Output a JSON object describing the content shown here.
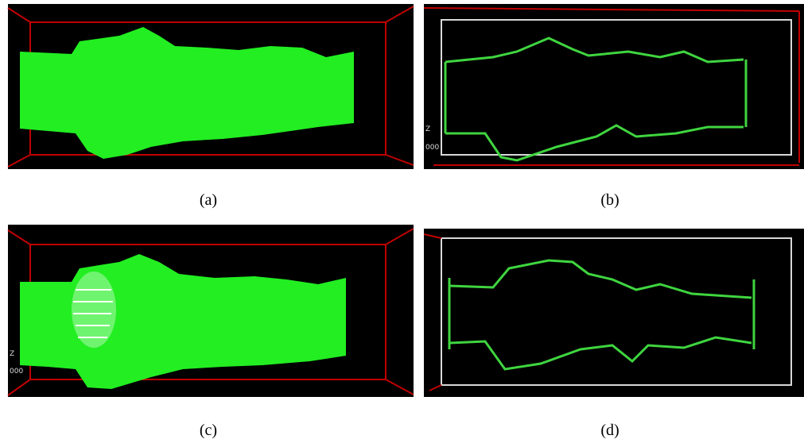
{
  "labels": [
    "(a)",
    "(b)",
    "(c)",
    "(d)"
  ],
  "axis_text": {
    "b": [
      "Z",
      "000"
    ],
    "c": [
      "Z",
      "000"
    ]
  }
}
